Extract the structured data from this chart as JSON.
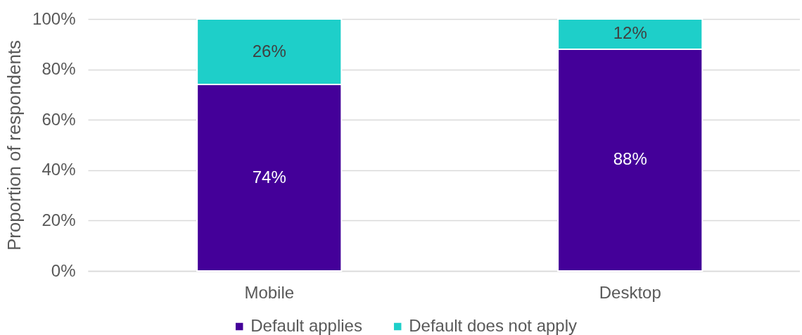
{
  "chart_data": {
    "type": "bar",
    "stacked": true,
    "ylabel": "Proportion of respondents",
    "categories": [
      "Mobile",
      "Desktop"
    ],
    "series": [
      {
        "name": "Default applies",
        "color": "#440099",
        "values": [
          74,
          88
        ],
        "value_labels": [
          "74%",
          "88%"
        ]
      },
      {
        "name": "Default does not apply",
        "color": "#1ecfc9",
        "values": [
          26,
          12
        ],
        "value_labels": [
          "26%",
          "12%"
        ]
      }
    ],
    "ylim": [
      0,
      100
    ],
    "yticks": [
      {
        "value": 0,
        "label": "0%"
      },
      {
        "value": 20,
        "label": "20%"
      },
      {
        "value": 40,
        "label": "40%"
      },
      {
        "value": 60,
        "label": "60%"
      },
      {
        "value": 80,
        "label": "80%"
      },
      {
        "value": 100,
        "label": "100%"
      }
    ],
    "grid": "y",
    "legend": "bottom"
  }
}
